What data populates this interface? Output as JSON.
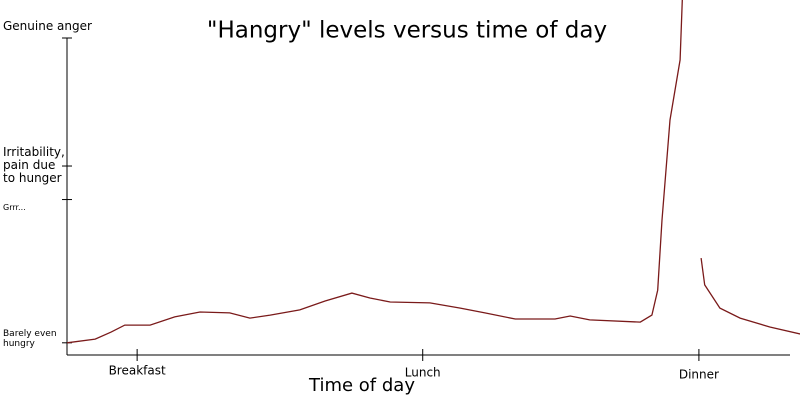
{
  "chart_data": {
    "type": "line",
    "title": "\"Hangry\" levels versus time of day",
    "x_label": "Time of day",
    "xlim": [
      0,
      100
    ],
    "xticks": [
      {
        "value": 9.7,
        "label": "Breakfast"
      },
      {
        "value": 49.2,
        "label": "Lunch"
      },
      {
        "value": 87.4,
        "label": "Dinner"
      }
    ],
    "ylim": [
      -4,
      100
    ],
    "yticks": [
      {
        "value": 0,
        "label": "Barely even\nhungry"
      },
      {
        "value": 47,
        "label": "Grrr..."
      },
      {
        "value": 58,
        "label": "Irritability,\npain due\nto hunger"
      },
      {
        "value": 100,
        "label": "Genuine anger"
      }
    ],
    "grid": false,
    "series": [
      {
        "color": "#7a1a1a",
        "x": [
          0,
          3.9,
          6.1,
          8.0,
          11.5,
          14.9,
          18.4,
          22.5,
          25.3,
          28.1,
          32.2,
          35.7,
          39.4,
          41.9,
          44.7,
          50.2,
          54.4,
          57.8,
          62.0,
          67.5,
          69.6,
          72.3,
          79.3,
          80.9,
          81.7,
          82.3,
          83.4,
          84.8,
          85.1,
          86.4,
          87.7,
          88.2,
          90.3,
          93.1,
          97.2,
          101.4
        ],
        "values": [
          0,
          1.2,
          3.5,
          5.8,
          5.8,
          8.5,
          10.1,
          9.8,
          8.1,
          9.1,
          10.8,
          13.7,
          16.3,
          14.7,
          13.4,
          13.1,
          11.4,
          9.8,
          7.8,
          7.8,
          8.8,
          7.5,
          6.8,
          9.1,
          17.3,
          40.3,
          73.1,
          92.8,
          112.5,
          null,
          27.8,
          19,
          11.4,
          8.1,
          5.2,
          2.9
        ]
      }
    ]
  }
}
